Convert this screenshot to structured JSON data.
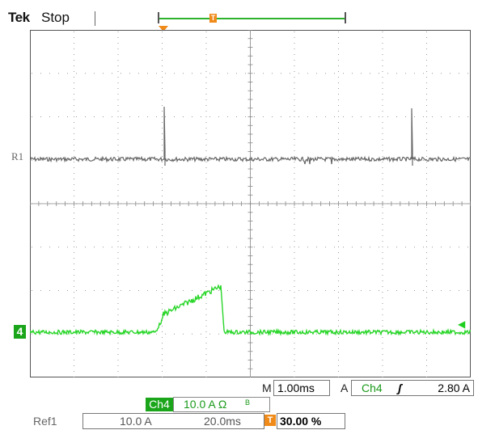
{
  "header": {
    "brand": "Tek",
    "status": "Stop",
    "trigger_marker": "T"
  },
  "traces": {
    "ref_label": "R1",
    "channel_marker": "4",
    "ref_color": "#666666",
    "ch4_color": "#29d629",
    "trigger_color": "#f08a18"
  },
  "readouts": {
    "horizontal_label": "M",
    "timebase": "1.00ms",
    "trigger_source_label": "A",
    "trigger_channel": "Ch4",
    "trigger_slope_icon": "rising-edge-icon",
    "trigger_edge": "ʃ",
    "trigger_level": "2.80 A",
    "ch4_tag": "Ch4",
    "ch4_scale": "10.0 A Ω",
    "ch4_bw": "B",
    "ref1_label": "Ref1",
    "ref1_scale": "10.0 A",
    "ref1_time": "20.0ms",
    "trigger_position_marker": "T",
    "trigger_position": "30.00 %"
  }
}
